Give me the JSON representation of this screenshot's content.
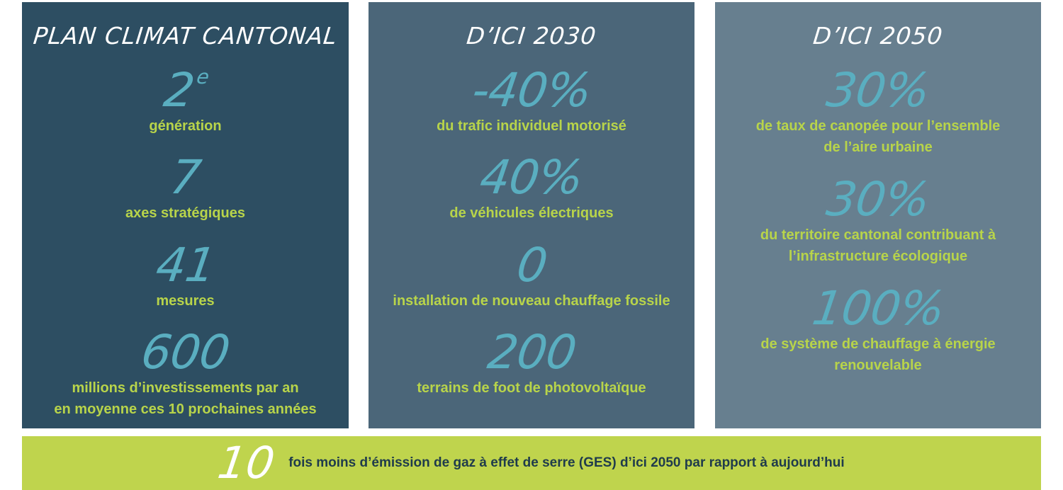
{
  "panels": [
    {
      "title": "PLAN CLIMAT CANTONAL",
      "stats": [
        {
          "value": "2",
          "sup": "e",
          "label": "génération"
        },
        {
          "value": "7",
          "label": "axes stratégiques"
        },
        {
          "value": "41",
          "label": "mesures"
        },
        {
          "value": "600",
          "label": "millions d’investissements par an\nen moyenne ces 10 prochaines années"
        }
      ]
    },
    {
      "title": "D’ICI 2030",
      "stats": [
        {
          "value": "-40%",
          "label": "du trafic individuel motorisé"
        },
        {
          "value": "40%",
          "label": "de véhicules électriques"
        },
        {
          "value": "0",
          "label": "installation de nouveau chauffage fossile"
        },
        {
          "value": "200",
          "label": "terrains de foot de photovoltaïque"
        }
      ]
    },
    {
      "title": "D’ICI 2050",
      "stats": [
        {
          "value": "30%",
          "label": "de taux de canopée pour l’ensemble\nde l’aire urbaine"
        },
        {
          "value": "30%",
          "label": "du territoire cantonal contribuant à\nl’infrastructure écologique"
        },
        {
          "value": "100%",
          "label": "de système de chauffage à énergie\nrenouvelable"
        }
      ]
    }
  ],
  "footer": {
    "value": "10",
    "label": "fois moins d’émission de gaz à effet de serre (GES) d’ici 2050 par rapport à aujourd’hui"
  },
  "colors": {
    "panel_1": "#2d4e62",
    "panel_2": "#4b6679",
    "panel_3": "#677f8f",
    "number": "#5aaec0",
    "label": "#b8d44a",
    "footer_bg": "#bfd44d"
  }
}
